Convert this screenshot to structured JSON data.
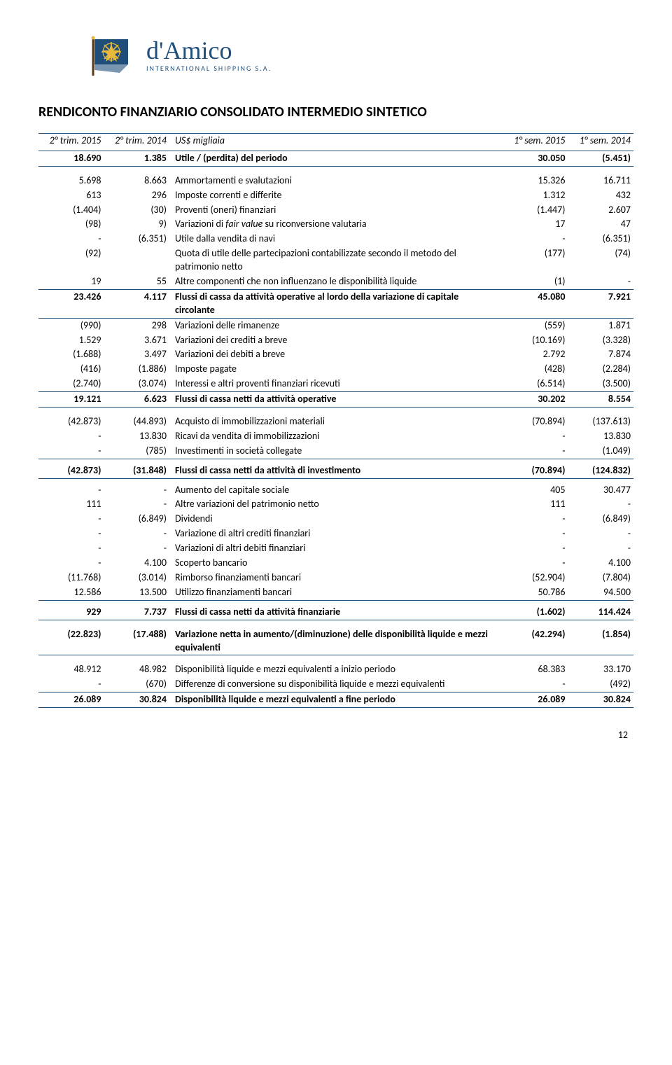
{
  "logo": {
    "script": "d'Amico",
    "sub": "INTERNATIONAL SHIPPING S.A.",
    "flag_blue": "#1f4e79",
    "flag_yellow": "#e8b93a"
  },
  "title": "RENDICONTO FINANZIARIO CONSOLIDATO INTERMEDIO SINTETICO",
  "columns": {
    "c1": "2° trim. 2015",
    "c2": "2° trim. 2014",
    "c3": "US$ migliaia",
    "c4": "1° sem. 2015",
    "c5": "1° sem. 2014"
  },
  "rows": [
    {
      "c1": "18.690",
      "c2": "1.385",
      "c3": "Utile / (perdita) del periodo",
      "c4": "30.050",
      "c5": "(5.451)",
      "bold": true,
      "ruleTop": true
    },
    {
      "spacer": true,
      "ruleTop": true
    },
    {
      "c1": "5.698",
      "c2": "8.663",
      "c3": "Ammortamenti e svalutazioni",
      "c4": "15.326",
      "c5": "16.711"
    },
    {
      "c1": "613",
      "c2": "296",
      "c3": "Imposte correnti e differite",
      "c4": "1.312",
      "c5": "432"
    },
    {
      "c1": "(1.404)",
      "c2": "(30)",
      "c3": "Proventi (oneri) finanziari",
      "c4": "(1.447)",
      "c5": "2.607"
    },
    {
      "c1": "(98)",
      "c2": "9)",
      "c3": "Variazioni di fair value su riconversione valutaria",
      "c4": "17",
      "c5": "47",
      "italicLabel": true
    },
    {
      "c1": "-",
      "c2": "(6.351)",
      "c3": "Utile dalla vendita di navi",
      "c4": "-",
      "c5": "(6.351)"
    },
    {
      "c1": "(92)",
      "c2": "",
      "c3": "Quota di utile delle partecipazioni contabilizzate secondo il metodo del patrimonio netto",
      "c4": "(177)",
      "c5": "(74)"
    },
    {
      "c1": "19",
      "c2": "55",
      "c3": "Altre componenti che non influenzano le disponibilità liquide",
      "c4": "(1)",
      "c5": "-"
    },
    {
      "c1": "23.426",
      "c2": "4.117",
      "c3": "Flussi di cassa da attività operative al lordo della variazione di capitale circolante",
      "c4": "45.080",
      "c5": "7.921",
      "bold": true,
      "ruleThin": true,
      "justify": true
    },
    {
      "c1": "(990)",
      "c2": "298",
      "c3": "Variazioni delle rimanenze",
      "c4": "(559)",
      "c5": "1.871",
      "ruleThin": true
    },
    {
      "c1": "1.529",
      "c2": "3.671",
      "c3": "Variazioni dei crediti a breve",
      "c4": "(10.169)",
      "c5": "(3.328)"
    },
    {
      "c1": "(1.688)",
      "c2": "3.497",
      "c3": "Variazioni dei debiti a breve",
      "c4": "2.792",
      "c5": "7.874"
    },
    {
      "c1": "(416)",
      "c2": "(1.886)",
      "c3": "Imposte pagate",
      "c4": "(428)",
      "c5": "(2.284)"
    },
    {
      "c1": "(2.740)",
      "c2": "(3.074)",
      "c3": "Interessi e altri proventi finanziari ricevuti",
      "c4": "(6.514)",
      "c5": "(3.500)"
    },
    {
      "c1": "19.121",
      "c2": "6.623",
      "c3": "Flussi di cassa netti da attività operative",
      "c4": "30.202",
      "c5": "8.554",
      "bold": true,
      "ruleTop": true
    },
    {
      "spacer": true,
      "ruleTop": true
    },
    {
      "c1": "(42.873)",
      "c2": "(44.893)",
      "c3": "Acquisto di immobilizzazioni materiali",
      "c4": "(70.894)",
      "c5": "(137.613)"
    },
    {
      "c1": "-",
      "c2": "13.830",
      "c3": "Ricavi da vendita di immobilizzazioni",
      "c4": "-",
      "c5": "13.830"
    },
    {
      "c1": "-",
      "c2": "(785)",
      "c3": "Investimenti in società collegate",
      "c4": "-",
      "c5": "(1.049)"
    },
    {
      "spacer": true,
      "ruleTop": true,
      "small": true
    },
    {
      "c1": "(42.873)",
      "c2": "(31.848)",
      "c3": "Flussi di cassa netti da attività di investimento",
      "c4": "(70.894)",
      "c5": "(124.832)",
      "bold": true
    },
    {
      "spacer": true,
      "ruleTop": true,
      "small": true
    },
    {
      "c1": "-",
      "c2": "-",
      "c3": "Aumento del capitale sociale",
      "c4": "405",
      "c5": "30.477"
    },
    {
      "c1": "111",
      "c2": "-",
      "c3": "Altre variazioni del patrimonio netto",
      "c4": "111",
      "c5": "-"
    },
    {
      "c1": "-",
      "c2": "(6.849)",
      "c3": "Dividendi",
      "c4": "-",
      "c5": "(6.849)"
    },
    {
      "c1": "-",
      "c2": "-",
      "c3": "Variazione di altri crediti finanziari",
      "c4": "-",
      "c5": "-"
    },
    {
      "c1": "-",
      "c2": "-",
      "c3": "Variazioni di altri debiti finanziari",
      "c4": "-",
      "c5": "-"
    },
    {
      "c1": "-",
      "c2": "4.100",
      "c3": "Scoperto bancario",
      "c4": "-",
      "c5": "4.100"
    },
    {
      "c1": "(11.768)",
      "c2": "(3.014)",
      "c3": "Rimborso finanziamenti bancari",
      "c4": "(52.904)",
      "c5": "(7.804)"
    },
    {
      "c1": "12.586",
      "c2": "13.500",
      "c3": "Utilizzo finanziamenti bancari",
      "c4": "50.786",
      "c5": "94.500"
    },
    {
      "spacer": true,
      "ruleTop": true,
      "small": true
    },
    {
      "c1": "929",
      "c2": "7.737",
      "c3": "Flussi di cassa netti da attività finanziarie",
      "c4": "(1.602)",
      "c5": "114.424",
      "bold": true
    },
    {
      "spacer": true,
      "ruleTop": true
    },
    {
      "c1": "(22.823)",
      "c2": "(17.488)",
      "c3": "Variazione netta in aumento/(diminuzione) delle disponibilità liquide e mezzi equivalenti",
      "c4": "(42.294)",
      "c5": "(1.854)",
      "bold": true
    },
    {
      "spacer": true,
      "ruleTop": true
    },
    {
      "c1": "48.912",
      "c2": "48.982",
      "c3": "Disponibilità liquide e mezzi equivalenti a inizio periodo",
      "c4": "68.383",
      "c5": "33.170"
    },
    {
      "c1": "-",
      "c2": "(670)",
      "c3": "Differenze di conversione su disponibilità liquide e mezzi equivalenti",
      "c4": "-",
      "c5": "(492)",
      "wrapVals": true
    },
    {
      "c1": "26.089",
      "c2": "30.824",
      "c3": "Disponibilità liquide e mezzi equivalenti a fine periodo",
      "c4": "26.089",
      "c5": "30.824",
      "bold": true,
      "ruleTop": true,
      "ruleBottom": true
    }
  ],
  "pagenum": "12",
  "colors": {
    "rule": "#1f4e79",
    "text": "#000000",
    "bg": "#ffffff"
  }
}
